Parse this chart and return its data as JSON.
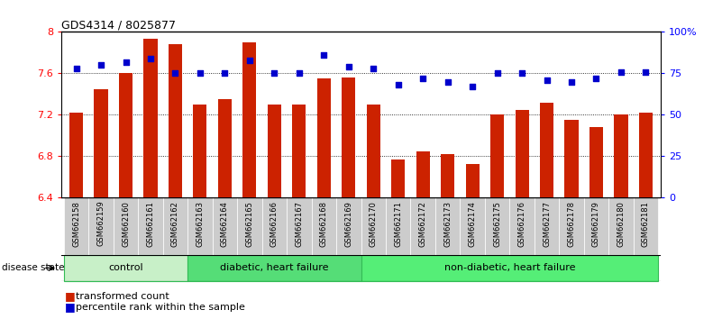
{
  "title": "GDS4314 / 8025877",
  "samples": [
    "GSM662158",
    "GSM662159",
    "GSM662160",
    "GSM662161",
    "GSM662162",
    "GSM662163",
    "GSM662164",
    "GSM662165",
    "GSM662166",
    "GSM662167",
    "GSM662168",
    "GSM662169",
    "GSM662170",
    "GSM662171",
    "GSM662172",
    "GSM662173",
    "GSM662174",
    "GSM662175",
    "GSM662176",
    "GSM662177",
    "GSM662178",
    "GSM662179",
    "GSM662180",
    "GSM662181"
  ],
  "bar_values": [
    7.22,
    7.45,
    7.6,
    7.93,
    7.88,
    7.3,
    7.35,
    7.9,
    7.3,
    7.3,
    7.55,
    7.56,
    7.3,
    6.77,
    6.85,
    6.82,
    6.73,
    7.2,
    7.25,
    7.32,
    7.15,
    7.08,
    7.2,
    7.22
  ],
  "dot_values_pct": [
    78,
    80,
    82,
    84,
    75,
    75,
    75,
    83,
    75,
    75,
    86,
    79,
    78,
    68,
    72,
    70,
    67,
    75,
    75,
    71,
    70,
    72,
    76,
    76
  ],
  "bar_color": "#CC2200",
  "dot_color": "#0000CC",
  "ylim_left": [
    6.4,
    8.0
  ],
  "ylim_right": [
    0,
    100
  ],
  "yticks_left": [
    6.4,
    6.8,
    7.2,
    7.6,
    8.0
  ],
  "ytick_labels_left": [
    "6.4",
    "6.8",
    "7.2",
    "7.6",
    "8"
  ],
  "yticks_right": [
    0,
    25,
    50,
    75,
    100
  ],
  "ytick_labels_right": [
    "0",
    "25",
    "50",
    "75",
    "100%"
  ],
  "hlines": [
    6.8,
    7.2,
    7.6
  ],
  "groups": [
    {
      "label": "control",
      "start": 0,
      "end": 4
    },
    {
      "label": "diabetic, heart failure",
      "start": 5,
      "end": 11
    },
    {
      "label": "non-diabetic, heart failure",
      "start": 12,
      "end": 23
    }
  ],
  "group_colors": [
    "#c8f0c8",
    "#55dd77",
    "#55ee77"
  ],
  "group_border_color": "#33bb55",
  "tick_bg_color": "#cccccc",
  "disease_state_label": "disease state",
  "legend_bar": "transformed count",
  "legend_dot": "percentile rank within the sample"
}
